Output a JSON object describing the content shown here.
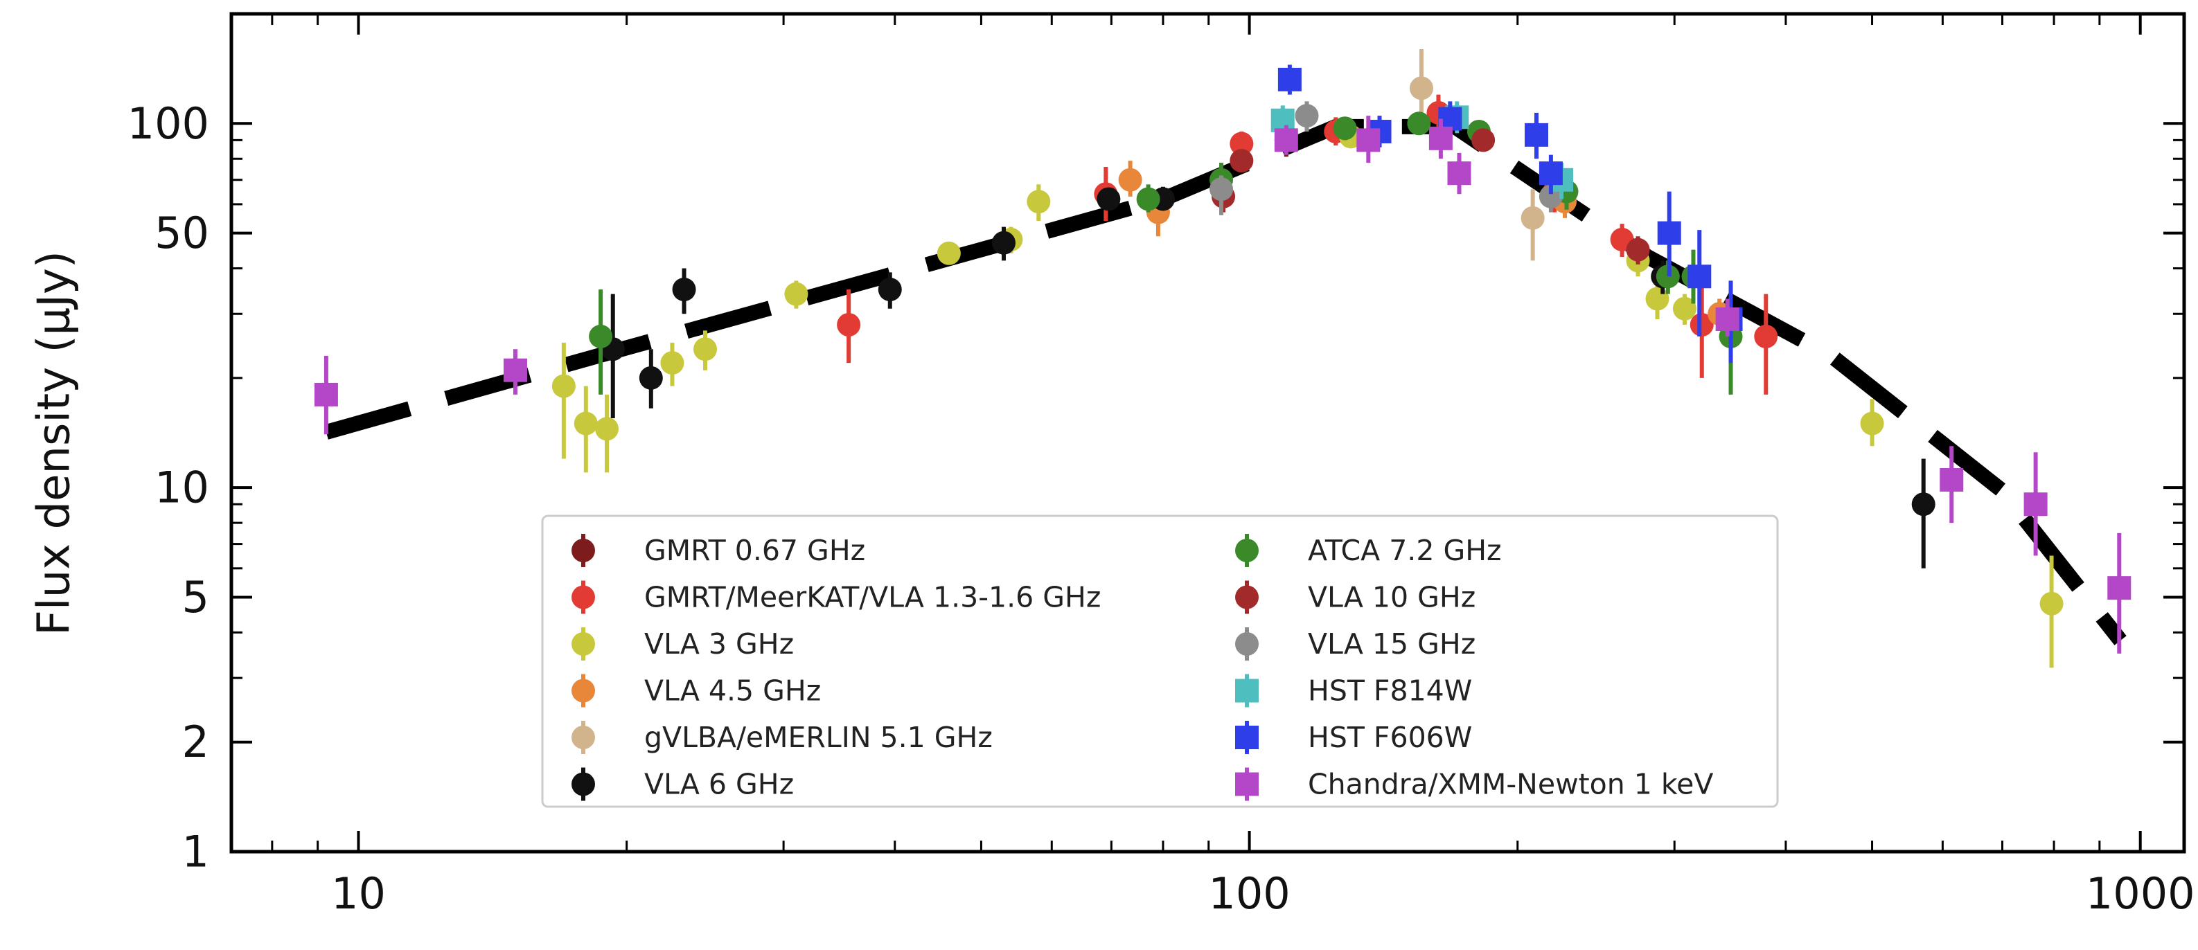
{
  "chart_data": {
    "type": "scatter",
    "title": "",
    "xlabel": "",
    "ylabel": "Flux density (μJy)",
    "xscale": "log",
    "yscale": "log",
    "xlim": [
      7.2,
      1120
    ],
    "ylim": [
      1,
      200
    ],
    "x_ticks": [
      {
        "value": 10,
        "label": "10"
      },
      {
        "value": 100,
        "label": "100"
      },
      {
        "value": 1000,
        "label": "1000"
      }
    ],
    "y_ticks": [
      {
        "value": 1,
        "label": "1"
      },
      {
        "value": 2,
        "label": "2"
      },
      {
        "value": 5,
        "label": "5"
      },
      {
        "value": 10,
        "label": "10"
      },
      {
        "value": 50,
        "label": "50"
      },
      {
        "value": 100,
        "label": "100"
      }
    ],
    "legend_position": "lower-center",
    "series": [
      {
        "name": "GMRT 0.67 GHz",
        "color": "#7d1c1c",
        "marker": "circle",
        "points": [
          [
            110,
            90,
            81,
            99
          ]
        ]
      },
      {
        "name": "GMRT/MeerKAT/VLA 1.3-1.6 GHz",
        "color": "#e23b34",
        "marker": "circle",
        "points": [
          [
            35.5,
            28,
            22,
            35
          ],
          [
            69,
            64,
            54,
            76
          ],
          [
            98,
            88,
            81,
            95
          ],
          [
            125,
            95,
            87,
            104
          ],
          [
            163,
            107,
            95,
            120
          ],
          [
            220,
            65,
            57,
            75
          ],
          [
            262,
            48,
            43,
            53
          ],
          [
            322,
            28,
            20,
            37
          ],
          [
            380,
            26,
            18,
            34
          ]
        ]
      },
      {
        "name": "VLA 3 GHz",
        "color": "#c8c83c",
        "marker": "circle",
        "points": [
          [
            17,
            19,
            12,
            25
          ],
          [
            18,
            15,
            11,
            19
          ],
          [
            19,
            14.5,
            11,
            18
          ],
          [
            22.5,
            22,
            19,
            25
          ],
          [
            24.5,
            24,
            21,
            27
          ],
          [
            31,
            34,
            31,
            37
          ],
          [
            46,
            44,
            41,
            47
          ],
          [
            54,
            48,
            44,
            52
          ],
          [
            58,
            61,
            54,
            68
          ],
          [
            130,
            92,
            86,
            98
          ],
          [
            273,
            42,
            38,
            46
          ],
          [
            287,
            33,
            29,
            37
          ],
          [
            308,
            31,
            28,
            34
          ],
          [
            500,
            15,
            13,
            17.5
          ],
          [
            795,
            4.8,
            3.2,
            6.5
          ]
        ]
      },
      {
        "name": "VLA 4.5 GHz",
        "color": "#e8863a",
        "marker": "circle",
        "points": [
          [
            73.5,
            70,
            63,
            79
          ],
          [
            79,
            57,
            49,
            65
          ],
          [
            226,
            61,
            55,
            68
          ],
          [
            337,
            30,
            27,
            33
          ]
        ]
      },
      {
        "name": "gVLBA/eMERLIN 5.1 GHz",
        "color": "#d2b48c",
        "marker": "circle",
        "points": [
          [
            156,
            125,
            100,
            160
          ],
          [
            208,
            55,
            42,
            66
          ]
        ]
      },
      {
        "name": "VLA 6 GHz",
        "color": "#111111",
        "marker": "circle",
        "points": [
          [
            19.3,
            24,
            15.5,
            34
          ],
          [
            21.3,
            20,
            16.5,
            24
          ],
          [
            23.2,
            35,
            30,
            40
          ],
          [
            39.5,
            35,
            31,
            39
          ],
          [
            53,
            47,
            42,
            52
          ],
          [
            69.5,
            62,
            58,
            66
          ],
          [
            80,
            62,
            58,
            67
          ],
          [
            291,
            38,
            34,
            42
          ],
          [
            571,
            9,
            6,
            12
          ]
        ]
      },
      {
        "name": "ATCA 7.2 GHz",
        "color": "#3a8a2a",
        "marker": "circle",
        "points": [
          [
            18.7,
            26,
            18,
            35
          ],
          [
            77,
            62,
            57,
            68
          ],
          [
            93,
            70,
            59,
            78
          ],
          [
            128,
            97,
            90,
            103
          ],
          [
            155,
            100,
            95,
            106
          ],
          [
            181,
            95,
            88,
            102
          ],
          [
            227,
            65,
            58,
            72
          ],
          [
            295,
            38,
            34,
            42
          ],
          [
            315,
            38,
            32,
            45
          ],
          [
            347,
            26,
            18,
            32
          ]
        ]
      },
      {
        "name": "VLA 10 GHz",
        "color": "#a32a2a",
        "marker": "circle",
        "points": [
          [
            93.5,
            63,
            57,
            69
          ],
          [
            98,
            79,
            76,
            82
          ],
          [
            183,
            90,
            84,
            96
          ],
          [
            273,
            45,
            41,
            49
          ]
        ]
      },
      {
        "name": "VLA 15 GHz",
        "color": "#8c8c8c",
        "marker": "circle",
        "points": [
          [
            93,
            66,
            56,
            72
          ],
          [
            116,
            105,
            95,
            115
          ],
          [
            218,
            63,
            57,
            70
          ]
        ]
      },
      {
        "name": "HST F814W",
        "color": "#4fbebe",
        "marker": "square",
        "points": [
          [
            109,
            102,
            93,
            112
          ],
          [
            171,
            104,
            94,
            115
          ],
          [
            224,
            70,
            62,
            78
          ]
        ]
      },
      {
        "name": "HST F606W",
        "color": "#2e3ee8",
        "marker": "square",
        "points": [
          [
            111,
            132,
            120,
            145
          ],
          [
            140,
            95,
            86,
            105
          ],
          [
            168,
            103,
            92,
            115
          ],
          [
            210,
            93,
            80,
            107
          ],
          [
            218,
            73,
            64,
            82
          ],
          [
            296,
            50,
            38,
            65
          ],
          [
            320,
            38,
            26,
            51
          ],
          [
            347,
            29,
            22,
            37
          ]
        ]
      },
      {
        "name": "Chandra/XMM-Newton 1 keV",
        "color": "#b347c8",
        "marker": "square",
        "points": [
          [
            9.2,
            18,
            14,
            23
          ],
          [
            15,
            21,
            18,
            24
          ],
          [
            110,
            90,
            82,
            99
          ],
          [
            136,
            90,
            78,
            105
          ],
          [
            164,
            91,
            80,
            103
          ],
          [
            172,
            73,
            64,
            83
          ],
          [
            344,
            29,
            26,
            33
          ],
          [
            614,
            10.5,
            8,
            13
          ],
          [
            763,
            9,
            6.5,
            12.5
          ],
          [
            947,
            5.3,
            3.5,
            7.5
          ]
        ]
      }
    ],
    "model": {
      "name": "broken power-law fit",
      "style": "dashed",
      "color": "#000000",
      "points": [
        [
          9.2,
          14.2
        ],
        [
          20,
          24.2
        ],
        [
          40,
          38.7
        ],
        [
          80,
          62
        ],
        [
          125,
          98
        ],
        [
          170,
          98
        ],
        [
          280,
          43
        ],
        [
          450,
          23
        ],
        [
          700,
          9.8
        ],
        [
          950,
          3.8
        ]
      ]
    }
  }
}
